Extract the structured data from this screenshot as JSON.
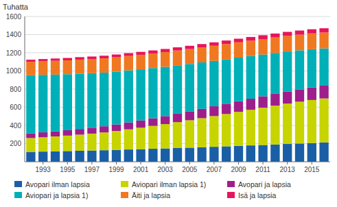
{
  "chart_data": {
    "type": "bar",
    "stacked": true,
    "ylabel": "Tuhatta",
    "categories": [
      null,
      "1993",
      null,
      "1995",
      null,
      "1997",
      null,
      "1999",
      null,
      "2001",
      null,
      "2003",
      null,
      "2005",
      null,
      "2007",
      null,
      "2009",
      null,
      "2011",
      null,
      "2013",
      null,
      "2015",
      null
    ],
    "series": [
      {
        "name": "Avopari ilman lapsia",
        "color": "#1a5fa6",
        "values": [
          109,
          112,
          115,
          118,
          121,
          124,
          127,
          131,
          135,
          139,
          143,
          147,
          151,
          155,
          160,
          165,
          170,
          175,
          180,
          185,
          190,
          196,
          201,
          207,
          213
        ]
      },
      {
        "name": "Aviopari ilman lapsia 1)",
        "color": "#c8d400",
        "values": [
          152,
          158,
          164,
          170,
          178,
          186,
          196,
          208,
          222,
          236,
          252,
          268,
          285,
          302,
          320,
          338,
          356,
          374,
          392,
          410,
          428,
          445,
          460,
          473,
          484
        ]
      },
      {
        "name": "Avopari ja lapsia",
        "color": "#9e1f8c",
        "values": [
          52,
          54,
          56,
          59,
          62,
          65,
          68,
          72,
          76,
          80,
          84,
          88,
          93,
          98,
          103,
          108,
          113,
          118,
          122,
          126,
          130,
          133,
          136,
          139,
          141
        ]
      },
      {
        "name": "Aviopari ja lapsia 1)",
        "color": "#00b0b8",
        "values": [
          640,
          633,
          625,
          617,
          609,
          600,
          591,
          582,
          573,
          563,
          553,
          543,
          533,
          522,
          511,
          500,
          490,
          480,
          470,
          460,
          450,
          440,
          430,
          420,
          410
        ]
      },
      {
        "name": "Äiti ja lapsia",
        "color": "#f07820",
        "values": [
          148,
          150,
          152,
          153,
          155,
          156,
          157,
          158,
          159,
          160,
          161,
          162,
          163,
          164,
          165,
          166,
          167,
          168,
          169,
          170,
          171,
          172,
          173,
          174,
          175
        ]
      },
      {
        "name": "Isä ja lapsia",
        "color": "#e8145a",
        "values": [
          23,
          24,
          25,
          26,
          27,
          28,
          29,
          30,
          31,
          32,
          33,
          34,
          35,
          36,
          37,
          38,
          39,
          40,
          41,
          42,
          43,
          44,
          45,
          46,
          47
        ]
      }
    ],
    "ylim": [
      0,
      1600
    ],
    "yticks": [
      200,
      400,
      600,
      800,
      1000,
      1200,
      1400,
      1600
    ],
    "grid": true,
    "legend": "bottom"
  }
}
